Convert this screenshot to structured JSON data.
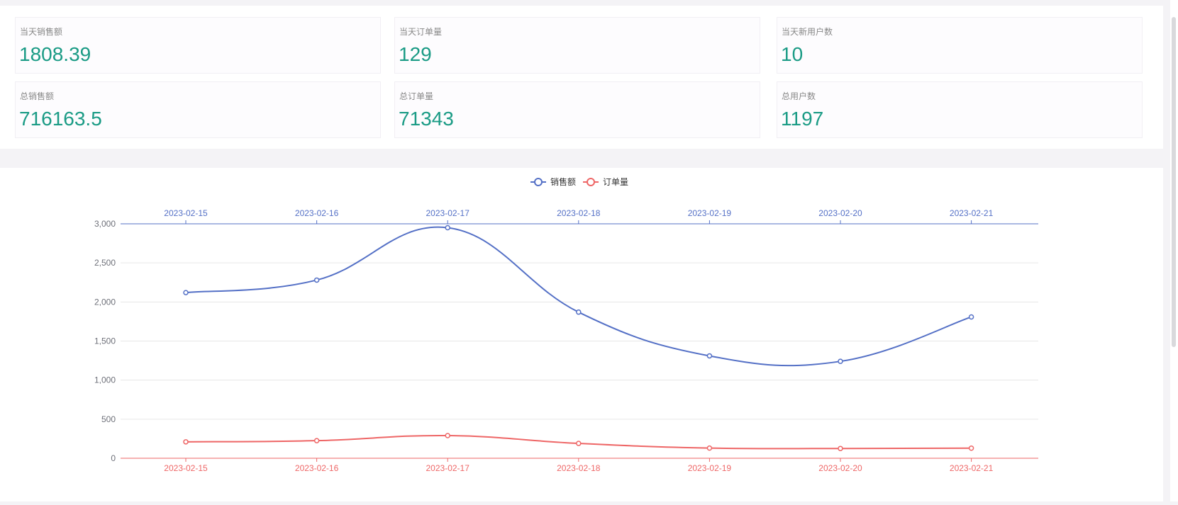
{
  "stats": {
    "today": [
      {
        "label": "当天销售额",
        "value": "1808.39"
      },
      {
        "label": "当天订单量",
        "value": "129"
      },
      {
        "label": "当天新用户数",
        "value": "10"
      }
    ],
    "total": [
      {
        "label": "总销售额",
        "value": "716163.5"
      },
      {
        "label": "总订单量",
        "value": "71343"
      },
      {
        "label": "总用户数",
        "value": "1197"
      }
    ]
  },
  "colors": {
    "value": "#1a9b85",
    "sales": "#5470c6",
    "orders": "#ee6666"
  },
  "chart_data": {
    "type": "line",
    "smooth": true,
    "x": [
      "2023-02-15",
      "2023-02-16",
      "2023-02-17",
      "2023-02-18",
      "2023-02-19",
      "2023-02-20",
      "2023-02-21"
    ],
    "x_axes": {
      "top": "series:销售额",
      "bottom": "series:订单量"
    },
    "series": [
      {
        "name": "销售额",
        "color": "#5470c6",
        "values": [
          2120,
          2280,
          2950,
          1870,
          1310,
          1240,
          1808.39
        ]
      },
      {
        "name": "订单量",
        "color": "#ee6666",
        "values": [
          210,
          225,
          290,
          190,
          130,
          125,
          129
        ]
      }
    ],
    "y_ticks": [
      "0",
      "500",
      "1,000",
      "1,500",
      "2,000",
      "2,500",
      "3,000"
    ],
    "ylim": [
      0,
      3000
    ],
    "grid": true,
    "legend": "top-center"
  }
}
